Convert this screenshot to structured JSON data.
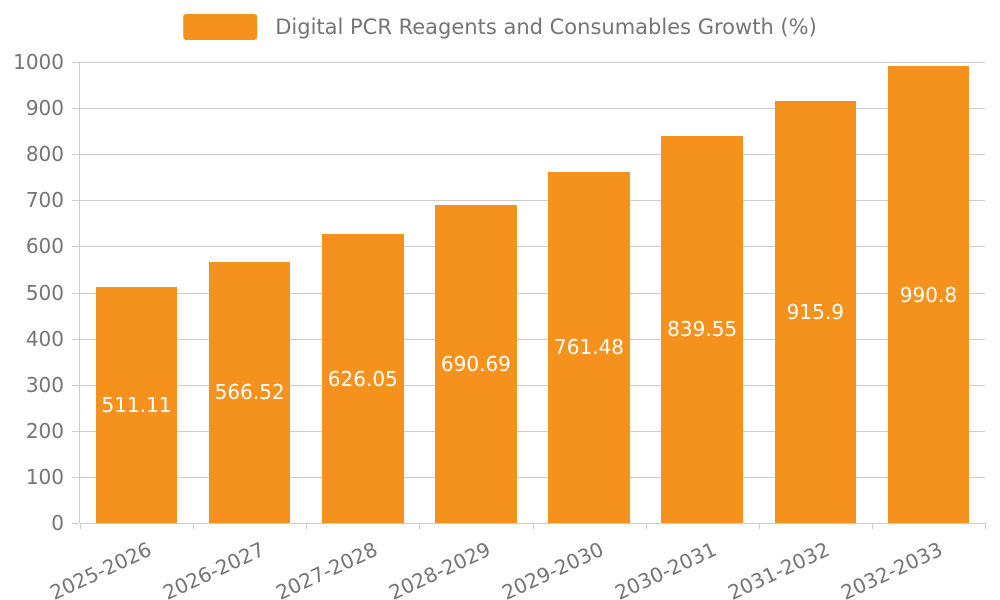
{
  "colors": {
    "bar": "#F5921E",
    "grid": "#cccccc",
    "axis_text": "#757575",
    "value_label_text": "#ffffff",
    "background": "#ffffff"
  },
  "chart_data": {
    "type": "bar",
    "title": "Digital PCR Reagents and Consumables Growth (%)",
    "categories": [
      "2025-2026",
      "2026-2027",
      "2027-2028",
      "2028-2029",
      "2029-2030",
      "2030-2031",
      "2031-2032",
      "2032-2033"
    ],
    "values": [
      511.11,
      566.52,
      626.05,
      690.69,
      761.48,
      839.55,
      915.9,
      990.8
    ],
    "value_labels": [
      "511.11",
      "566.52",
      "626.05",
      "690.69",
      "761.48",
      "839.55",
      "915.9",
      "990.8"
    ],
    "xlabel": "",
    "ylabel": "",
    "ylim": [
      0,
      1000
    ],
    "ytick_step": 100,
    "ytick_labels": [
      "0",
      "100",
      "200",
      "300",
      "400",
      "500",
      "600",
      "700",
      "800",
      "900",
      "1000"
    ],
    "grid": true,
    "legend_position": "top",
    "value_labels_inside": "centered"
  }
}
